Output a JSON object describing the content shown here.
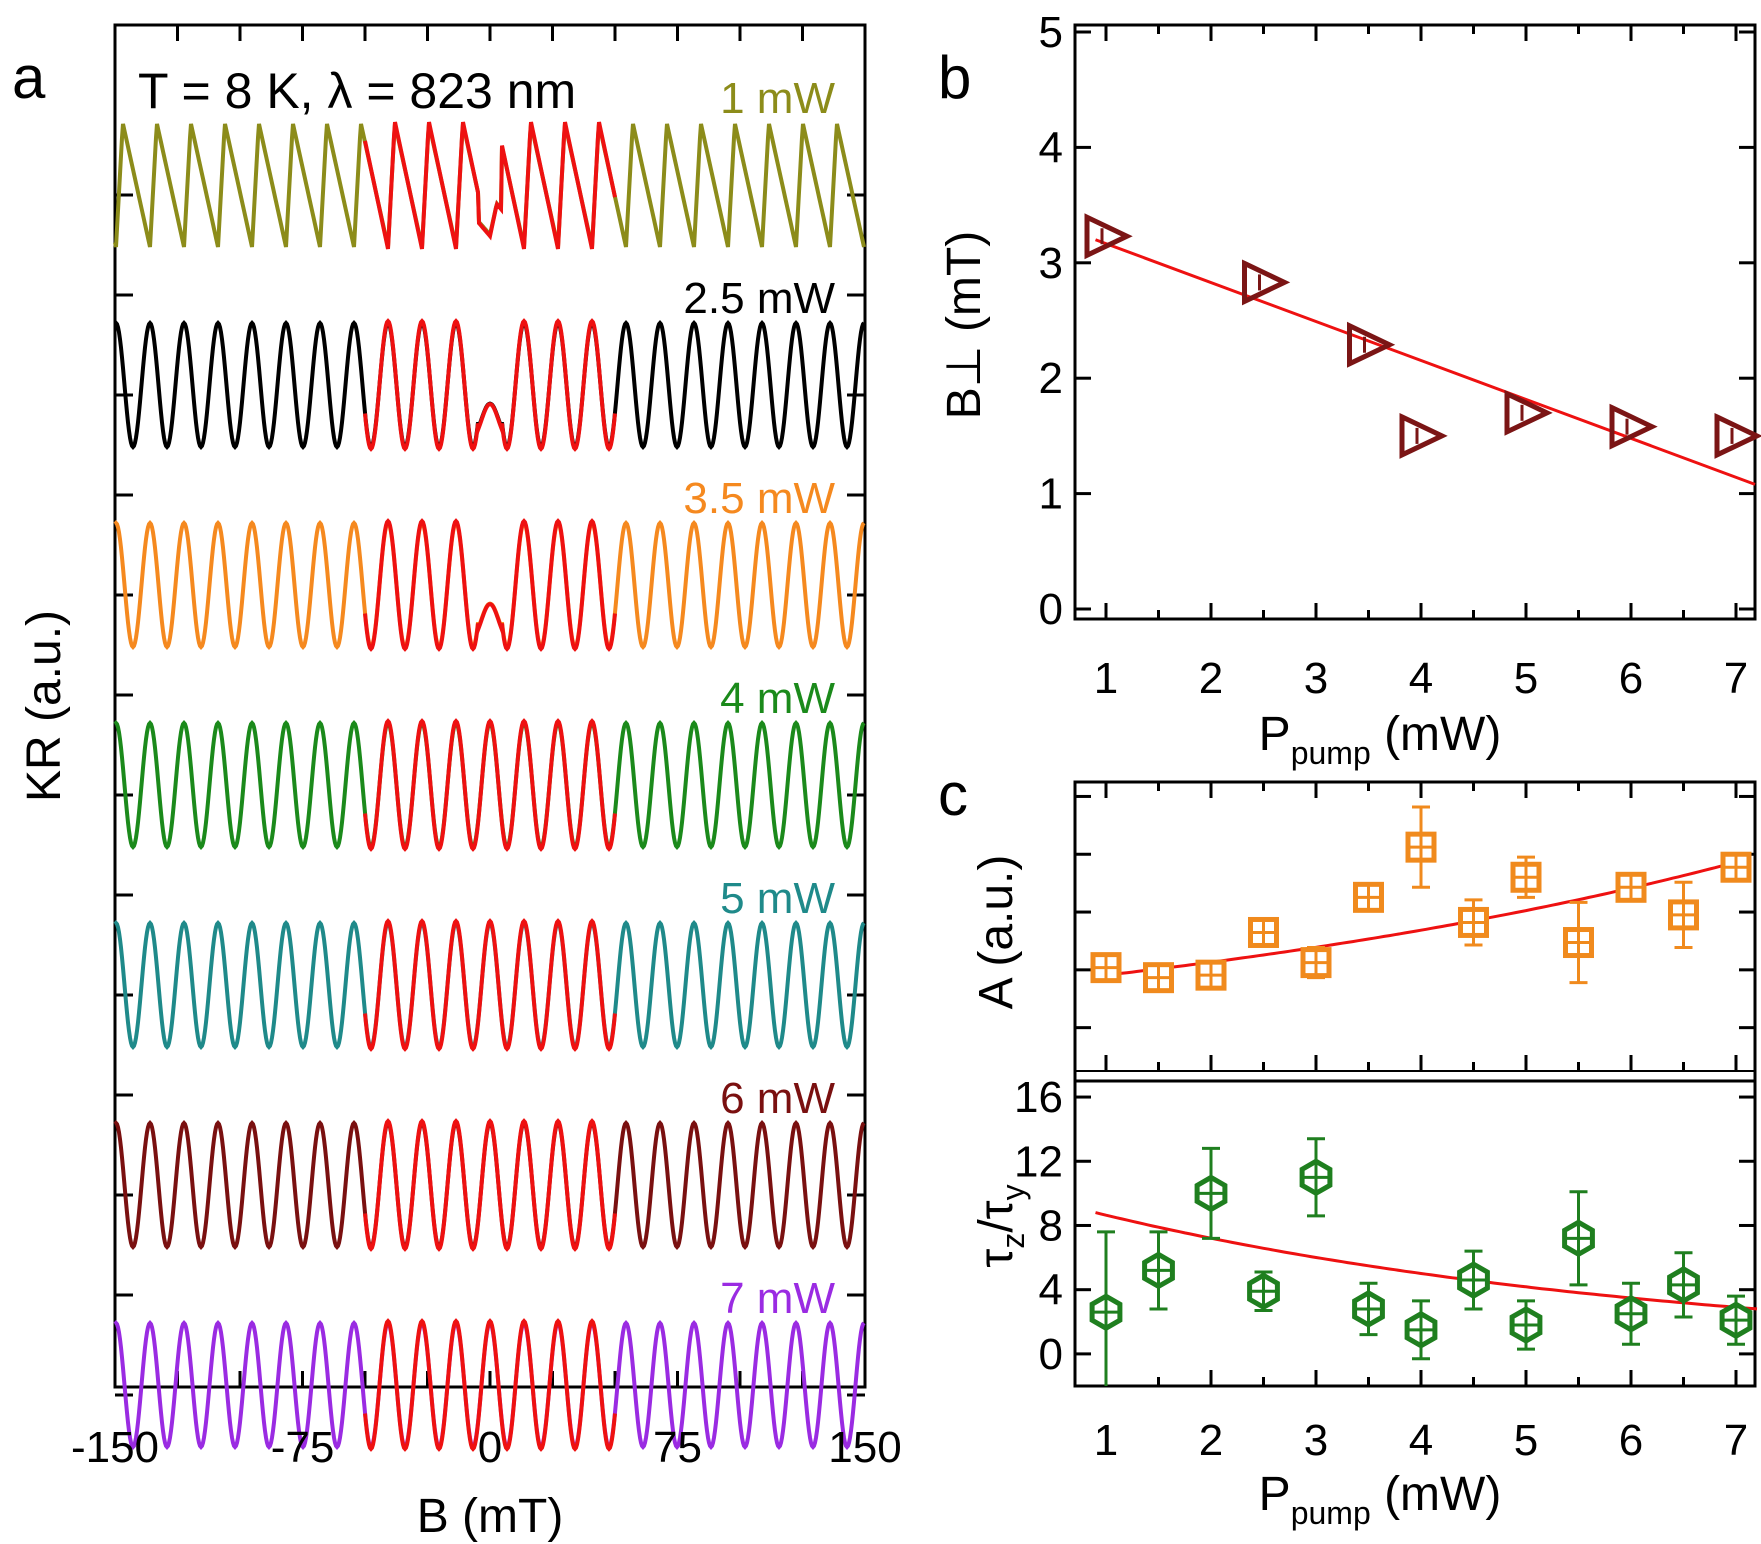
{
  "panel_a": {
    "letter": "a",
    "condition": "T = 8 K, λ = 823 nm",
    "xlabel": "B (mT)",
    "ylabel": "KR (a.u.)"
  },
  "panel_b": {
    "letter": "b",
    "ylabel": "B⊥ (mT)",
    "xlabel_main": "P",
    "xlabel_sub": "pump",
    "xlabel_unit": " (mW)"
  },
  "panel_c": {
    "letter": "c",
    "ylabel_top": "A (a.u.)",
    "ylabel_bottom_tau1": "τ",
    "ylabel_bottom_sub1": "z",
    "ylabel_bottom_slash": "/",
    "ylabel_bottom_tau2": "τ",
    "ylabel_bottom_sub2": "y",
    "xlabel_main": "P",
    "xlabel_sub": "pump",
    "xlabel_unit": " (mW)"
  },
  "colors": {
    "fit": "#ee1111",
    "b_marker": "#7b1515",
    "A_marker": "#f08a1d",
    "tau_marker": "#1f7f1f",
    "axis": "#000000"
  },
  "chart_data": [
    {
      "id": "a",
      "type": "line",
      "title": "T = 8 K, λ = 823 nm",
      "xlabel": "B (mT)",
      "ylabel": "KR (a.u.)",
      "xlim": [
        -150,
        150
      ],
      "xticks": [
        "-150",
        "-75",
        "0",
        "75",
        "150"
      ],
      "fit_range_mT": [
        -50,
        50
      ],
      "fit_color": "#ee1111",
      "series": [
        {
          "name": "1 mW",
          "label": "1 mW",
          "color": "#8c8c1a",
          "period_mT": 13.6,
          "shape": "sawtooth",
          "dip_at_zero": true
        },
        {
          "name": "2.5 mW",
          "label": "2.5 mW",
          "color": "#000000",
          "period_mT": 13.6,
          "shape": "sine",
          "dip_at_zero": true
        },
        {
          "name": "3.5 mW",
          "label": "3.5 mW",
          "color": "#f5891f",
          "period_mT": 13.6,
          "shape": "sine",
          "dip_at_zero": true
        },
        {
          "name": "4 mW",
          "label": "4 mW",
          "color": "#1b8a1b",
          "period_mT": 13.6,
          "shape": "sine",
          "dip_at_zero": false
        },
        {
          "name": "5 mW",
          "label": "5 mW",
          "color": "#1f8a8a",
          "period_mT": 13.6,
          "shape": "sine",
          "dip_at_zero": false
        },
        {
          "name": "6 mW",
          "label": "6 mW",
          "color": "#7a1010",
          "period_mT": 13.6,
          "shape": "sine",
          "dip_at_zero": false
        },
        {
          "name": "7 mW",
          "label": "7 mW",
          "color": "#9a2be2",
          "period_mT": 13.6,
          "shape": "sine",
          "dip_at_zero": false
        }
      ]
    },
    {
      "id": "b",
      "type": "scatter",
      "xlabel": "P_pump (mW)",
      "ylabel": "B⊥ (mT)",
      "xlim": [
        0.7,
        7.2
      ],
      "ylim": [
        0,
        5
      ],
      "xticks": [
        "1",
        "2",
        "3",
        "4",
        "5",
        "6",
        "7"
      ],
      "yticks": [
        "0",
        "1",
        "2",
        "3",
        "4",
        "5"
      ],
      "points": {
        "x": [
          1,
          2.5,
          3.5,
          4,
          5,
          6,
          7
        ],
        "y": [
          3.23,
          2.83,
          2.29,
          1.5,
          1.7,
          1.58,
          1.5
        ]
      },
      "fit": {
        "kind": "linear",
        "x": [
          0.9,
          7.2
        ],
        "y": [
          3.2,
          1.08
        ]
      }
    },
    {
      "id": "c_top",
      "type": "scatter",
      "xlabel": "P_pump (mW)",
      "ylabel": "A (a.u.)",
      "xlim": [
        0.7,
        7.2
      ],
      "ylim": [
        0,
        1
      ],
      "points": {
        "x": [
          1,
          1.5,
          2,
          2.5,
          3,
          3.5,
          4,
          4.5,
          5,
          5.5,
          6,
          6.5,
          7
        ],
        "y": [
          0.38,
          0.34,
          0.35,
          0.52,
          0.4,
          0.66,
          0.86,
          0.56,
          0.74,
          0.48,
          0.7,
          0.59,
          0.78
        ],
        "err": [
          0.03,
          0.02,
          0.03,
          0.03,
          0.06,
          0.02,
          0.16,
          0.09,
          0.08,
          0.16,
          0.04,
          0.13,
          0.02
        ]
      },
      "fit": {
        "kind": "exponential",
        "x_start": 1,
        "y_start": 0.35,
        "x_end": 7,
        "y_end": 0.8
      }
    },
    {
      "id": "c_bottom",
      "type": "scatter",
      "xlabel": "P_pump (mW)",
      "ylabel": "τz/τy",
      "xlim": [
        0.7,
        7.2
      ],
      "ylim": [
        -2,
        17
      ],
      "xticks": [
        "1",
        "2",
        "3",
        "4",
        "5",
        "6",
        "7"
      ],
      "yticks": [
        "0",
        "4",
        "8",
        "12",
        "16"
      ],
      "points": {
        "x": [
          1,
          1.5,
          2,
          2.5,
          3,
          3.5,
          4,
          4.5,
          5,
          5.5,
          6,
          6.5,
          7
        ],
        "y": [
          2.6,
          5.2,
          10.0,
          3.9,
          11.0,
          2.8,
          1.5,
          4.6,
          1.8,
          7.2,
          2.5,
          4.3,
          2.1
        ],
        "err": [
          5.0,
          2.4,
          2.8,
          1.2,
          2.4,
          1.6,
          1.8,
          1.8,
          1.5,
          2.9,
          1.9,
          2.0,
          1.5
        ]
      },
      "fit": {
        "kind": "exponential",
        "x_start": 0.9,
        "y_start": 8.8,
        "x_end": 7.2,
        "y_end": 2.8
      }
    }
  ]
}
